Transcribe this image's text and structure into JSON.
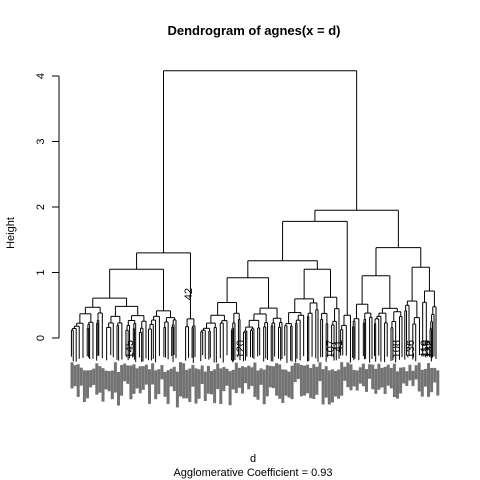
{
  "chart_data": {
    "type": "dendrogram",
    "title": "Dendrogram of  agnes(x = d)",
    "xlabel": "d",
    "ylabel": "Height",
    "subtitle": "Agglomerative Coefficient =  0.93",
    "ylim": [
      0,
      4.2
    ],
    "yticks": [
      0,
      1,
      2,
      3,
      4
    ],
    "merges": [
      {
        "height": 4.08,
        "left": "A",
        "right": "B"
      },
      {
        "height": 1.3,
        "left": "A1",
        "right": "A2",
        "group": "A"
      },
      {
        "height": 1.05,
        "left": "A1a",
        "right": "A1b"
      },
      {
        "height": 1.95,
        "left": "B1",
        "right": "B2",
        "group": "B"
      },
      {
        "height": 1.78,
        "left": "B1a",
        "right": "B1b"
      },
      {
        "height": 1.38,
        "left": "B2a",
        "right": "B2b"
      },
      {
        "height": 1.18,
        "left": "B1a-L",
        "right": "B1a-R"
      },
      {
        "height": 0.95,
        "left": "B2a-L",
        "right": "B2a-R"
      },
      {
        "height": 1.08,
        "left": "B2b-L",
        "right": "B2b-R"
      },
      {
        "height": 0.92,
        "left": "B1a-LL",
        "right": "B1a-LR"
      },
      {
        "height": 1.05,
        "left": "B1a-RL",
        "right": "B1a-RR"
      }
    ],
    "visible_leaf_labels": [
      "42",
      "120",
      "107",
      "41",
      "108",
      "110",
      "116",
      "132",
      "145",
      "136"
    ]
  }
}
